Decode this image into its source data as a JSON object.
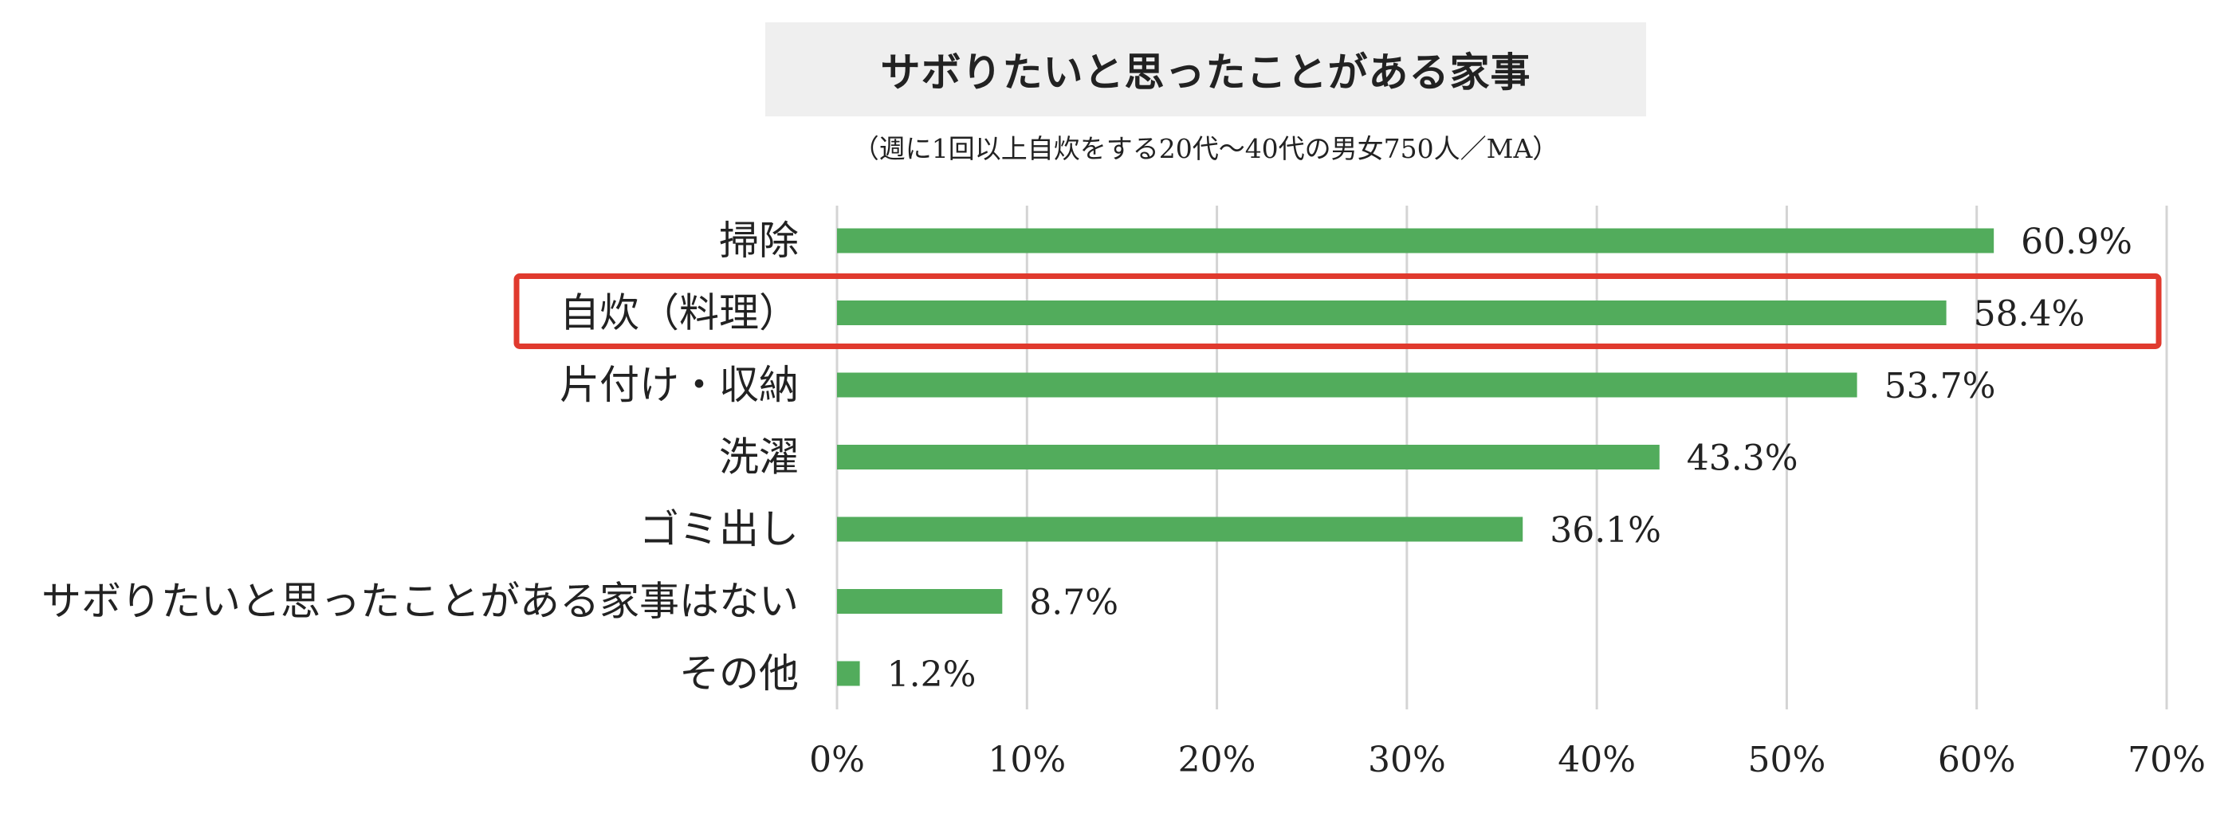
{
  "chart_data": {
    "type": "bar",
    "orientation": "horizontal",
    "title": "サボりたいと思ったことがある家事",
    "subtitle": "（週に1回以上自炊をする20代〜40代の男女750人／MA）",
    "categories": [
      "掃除",
      "自炊（料理）",
      "片付け・収納",
      "洗濯",
      "ゴミ出し",
      "サボりたいと思ったことがある家事はない",
      "その他"
    ],
    "values": [
      60.9,
      58.4,
      53.7,
      43.3,
      36.1,
      8.7,
      1.2
    ],
    "value_labels": [
      "60.9%",
      "58.4%",
      "53.7%",
      "43.3%",
      "36.1%",
      "8.7%",
      "1.2%"
    ],
    "xlim": [
      0,
      70
    ],
    "x_ticks": [
      0,
      10,
      20,
      30,
      40,
      50,
      60,
      70
    ],
    "x_tick_labels": [
      "0%",
      "10%",
      "20%",
      "30%",
      "40%",
      "50%",
      "60%",
      "70%"
    ],
    "grid": true,
    "bar_color": "#52ac5c",
    "highlight_color": "#e03a2e",
    "highlight_index": 1
  }
}
